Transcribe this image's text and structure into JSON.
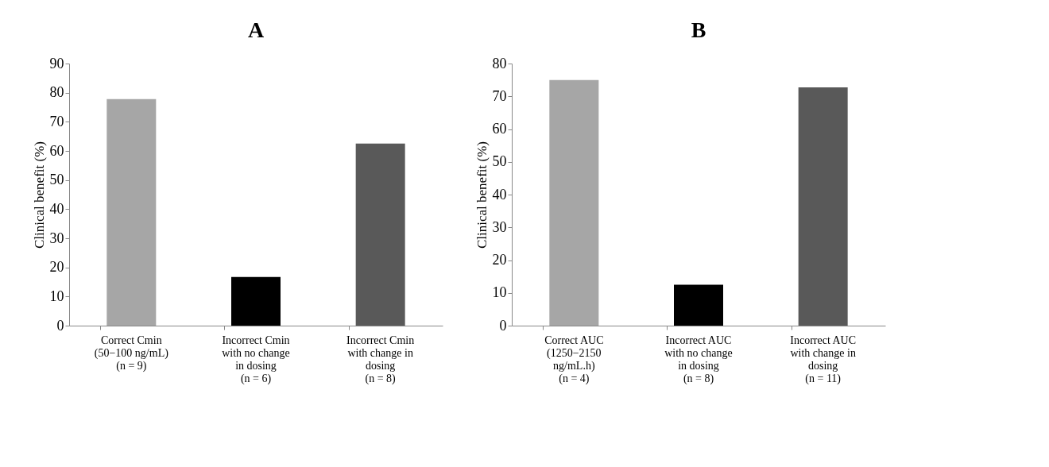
{
  "chart_data": [
    {
      "type": "bar",
      "title": "A",
      "ylabel": "Clinical benefit (%)",
      "categories": [
        "Correct Cmin\n(50−100 ng/mL)\n(n = 9)",
        "Incorrect Cmin\nwith no change\nin dosing\n(n = 6)",
        "Incorrect Cmin\nwith change in\ndosing\n(n = 8)"
      ],
      "values": [
        77.8,
        16.7,
        62.5
      ],
      "colors": [
        "#a6a6a6",
        "#000000",
        "#595959"
      ],
      "ylim": [
        0,
        90
      ],
      "yticks": [
        0,
        10,
        20,
        30,
        40,
        50,
        60,
        70,
        80,
        90
      ],
      "grid": false
    },
    {
      "type": "bar",
      "title": "B",
      "ylabel": "Clinical benefit (%)",
      "categories": [
        "Correct AUC\n(1250−2150\nng/mL.h)\n(n = 4)",
        "Incorrect AUC\nwith no change\nin dosing\n(n = 8)",
        "Incorrect AUC\nwith change in\ndosing\n(n = 11)"
      ],
      "values": [
        75,
        12.5,
        72.7
      ],
      "colors": [
        "#a6a6a6",
        "#000000",
        "#595959"
      ],
      "ylim": [
        0,
        80
      ],
      "yticks": [
        0,
        10,
        20,
        30,
        40,
        50,
        60,
        70,
        80
      ],
      "grid": false
    }
  ]
}
